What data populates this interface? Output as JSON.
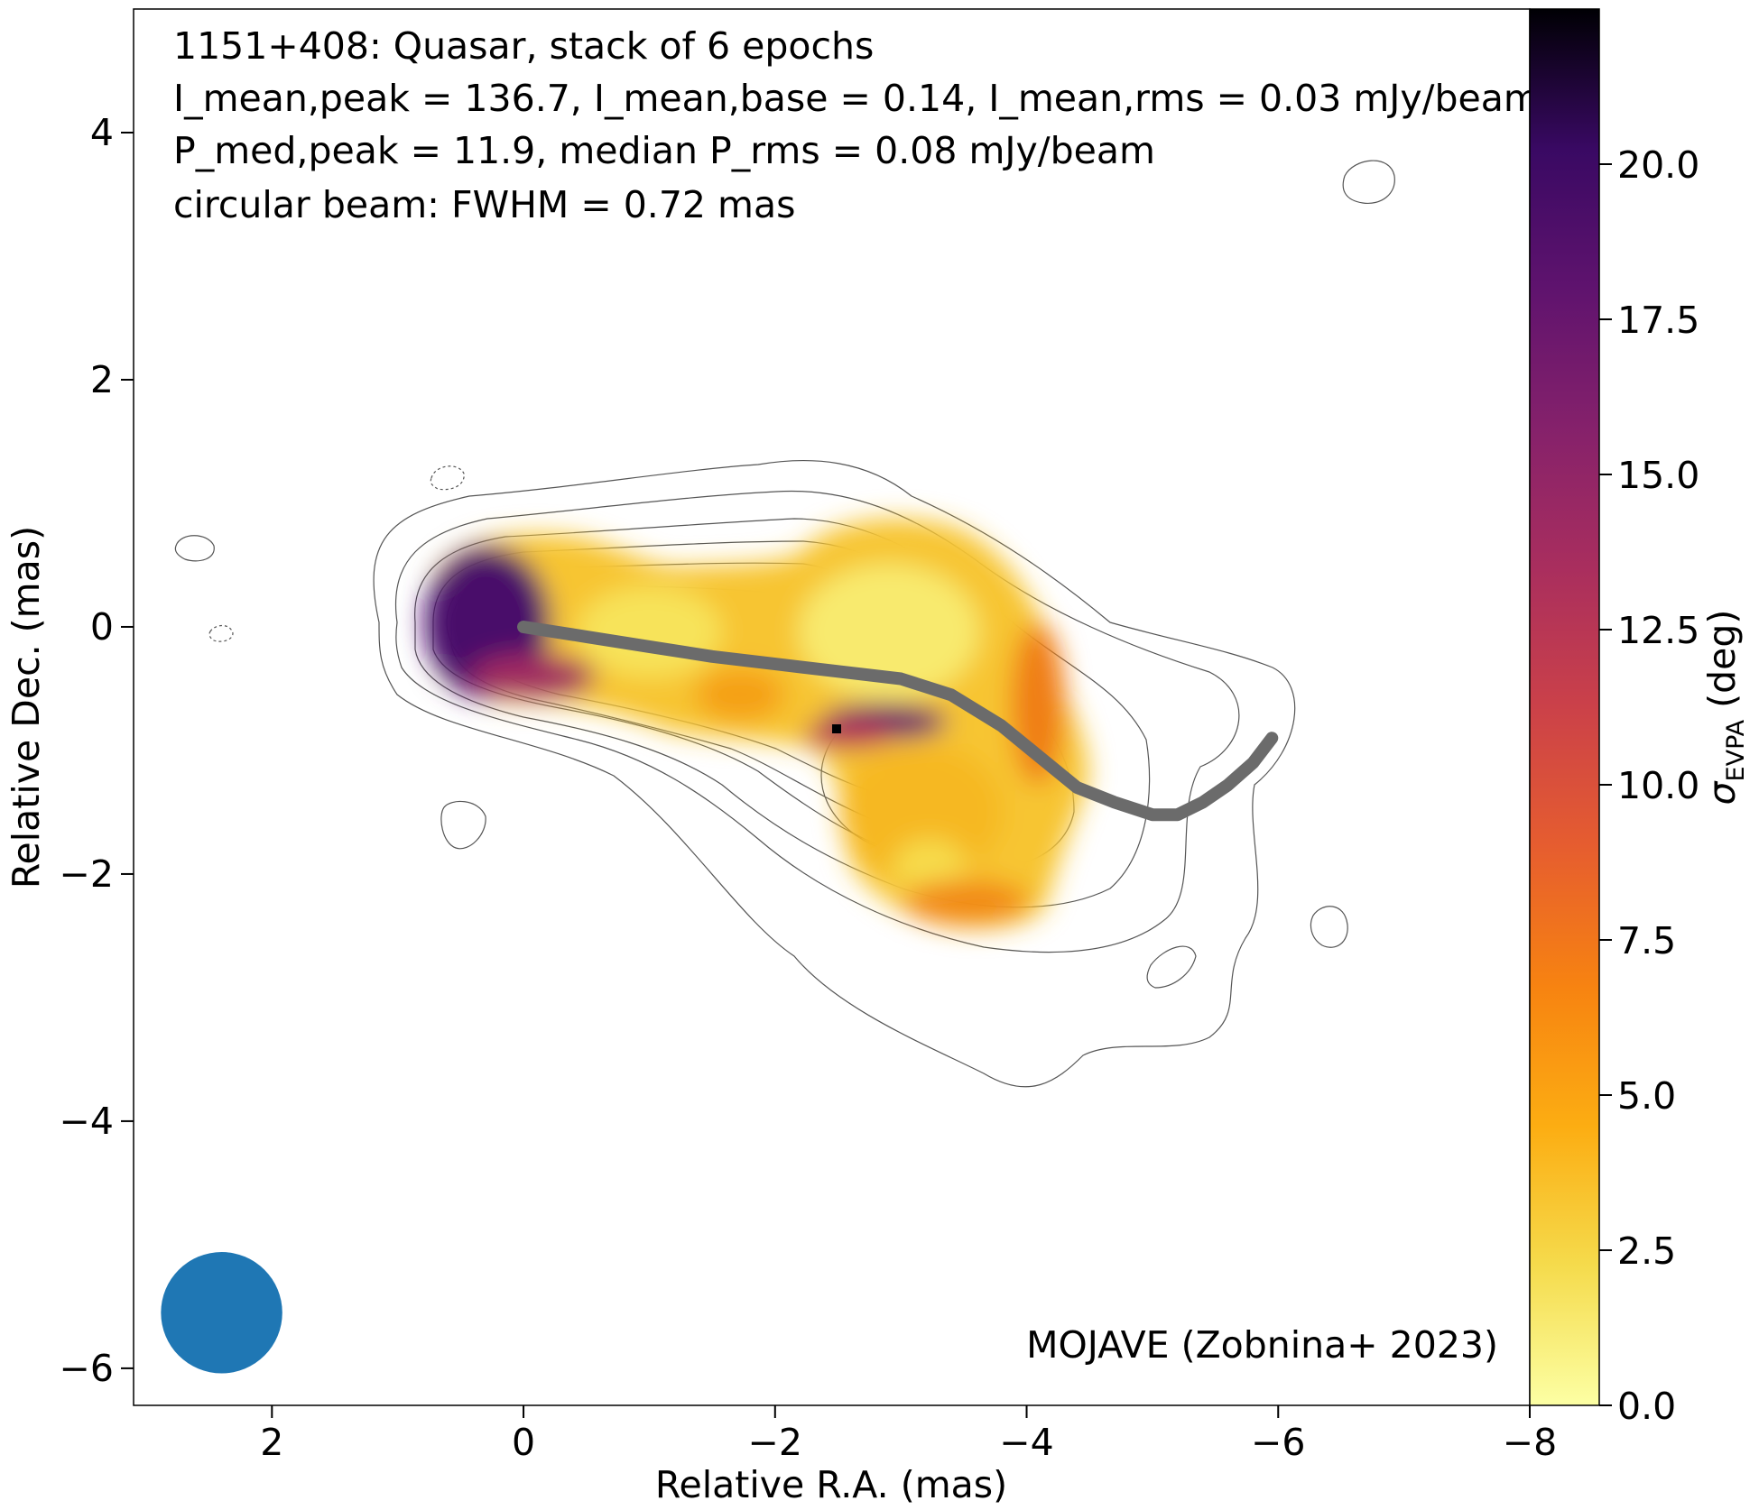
{
  "chart_data": {
    "type": "heatmap",
    "title_lines": [
      "1151+408: Quasar, stack of 6 epochs",
      "I_mean,peak = 136.7, I_mean,base = 0.14, I_mean,rms = 0.03 mJy/beam",
      "P_med,peak = 11.9, median P_rms = 0.08 mJy/beam",
      "circular beam: FWHM = 0.72 mas"
    ],
    "annotation": "MOJAVE (Zobnina+ 2023)",
    "xlabel": "Relative R.A. (mas)",
    "ylabel": "Relative Dec. (mas)",
    "xlim": [
      3.1,
      -8.0
    ],
    "ylim": [
      -6.3,
      5.0
    ],
    "x_ticks": [
      2,
      0,
      -2,
      -4,
      -6,
      -8
    ],
    "x_tick_labels": [
      "2",
      "0",
      "−2",
      "−4",
      "−6",
      "−8"
    ],
    "y_ticks": [
      4,
      2,
      0,
      -2,
      -4,
      -6
    ],
    "y_tick_labels": [
      "4",
      "2",
      "0",
      "−2",
      "−4",
      "−6"
    ],
    "colorbar": {
      "label": "σ_EVPA (deg)",
      "range": [
        0.0,
        22.5
      ],
      "ticks": [
        0.0,
        2.5,
        5.0,
        7.5,
        10.0,
        12.5,
        15.0,
        17.5,
        20.0
      ],
      "tick_labels": [
        "0.0",
        "2.5",
        "5.0",
        "7.5",
        "10.0",
        "12.5",
        "15.0",
        "17.5",
        "20.0"
      ],
      "colormap": "inferno_r"
    },
    "sigma_evpa_regions": [
      {
        "region": "core",
        "x": 0.4,
        "y": 0.0,
        "value": 17.5
      },
      {
        "region": "core edge",
        "x": 0.0,
        "y": -0.6,
        "value": 12.5
      },
      {
        "region": "inner jet",
        "x": -1.5,
        "y": -0.2,
        "value": 3.0
      },
      {
        "region": "upper knot",
        "x": -3.0,
        "y": 0.0,
        "value": 1.5
      },
      {
        "region": "knot band",
        "x": -3.0,
        "y": -0.7,
        "value": 16.0
      },
      {
        "region": "lower knot",
        "x": -3.3,
        "y": -1.4,
        "value": 3.5
      },
      {
        "region": "outer edge",
        "x": -4.2,
        "y": -0.9,
        "value": 6.5
      }
    ],
    "ridge_line": {
      "color": "#6b6b6b",
      "x": [
        0.0,
        -0.5,
        -1.0,
        -1.5,
        -2.0,
        -2.5,
        -3.0,
        -3.4,
        -3.8,
        -4.1,
        -4.4,
        -4.7,
        -5.0,
        -5.2,
        -5.4,
        -5.6,
        -5.8,
        -5.95
      ],
      "y": [
        0.0,
        -0.08,
        -0.16,
        -0.24,
        -0.3,
        -0.36,
        -0.42,
        -0.55,
        -0.8,
        -1.05,
        -1.3,
        -1.42,
        -1.52,
        -1.52,
        -1.42,
        -1.28,
        -1.1,
        -0.9
      ]
    },
    "beam": {
      "fwhm_mas": 0.72,
      "x": 2.4,
      "y": -5.55,
      "color": "#1f77b4"
    }
  }
}
